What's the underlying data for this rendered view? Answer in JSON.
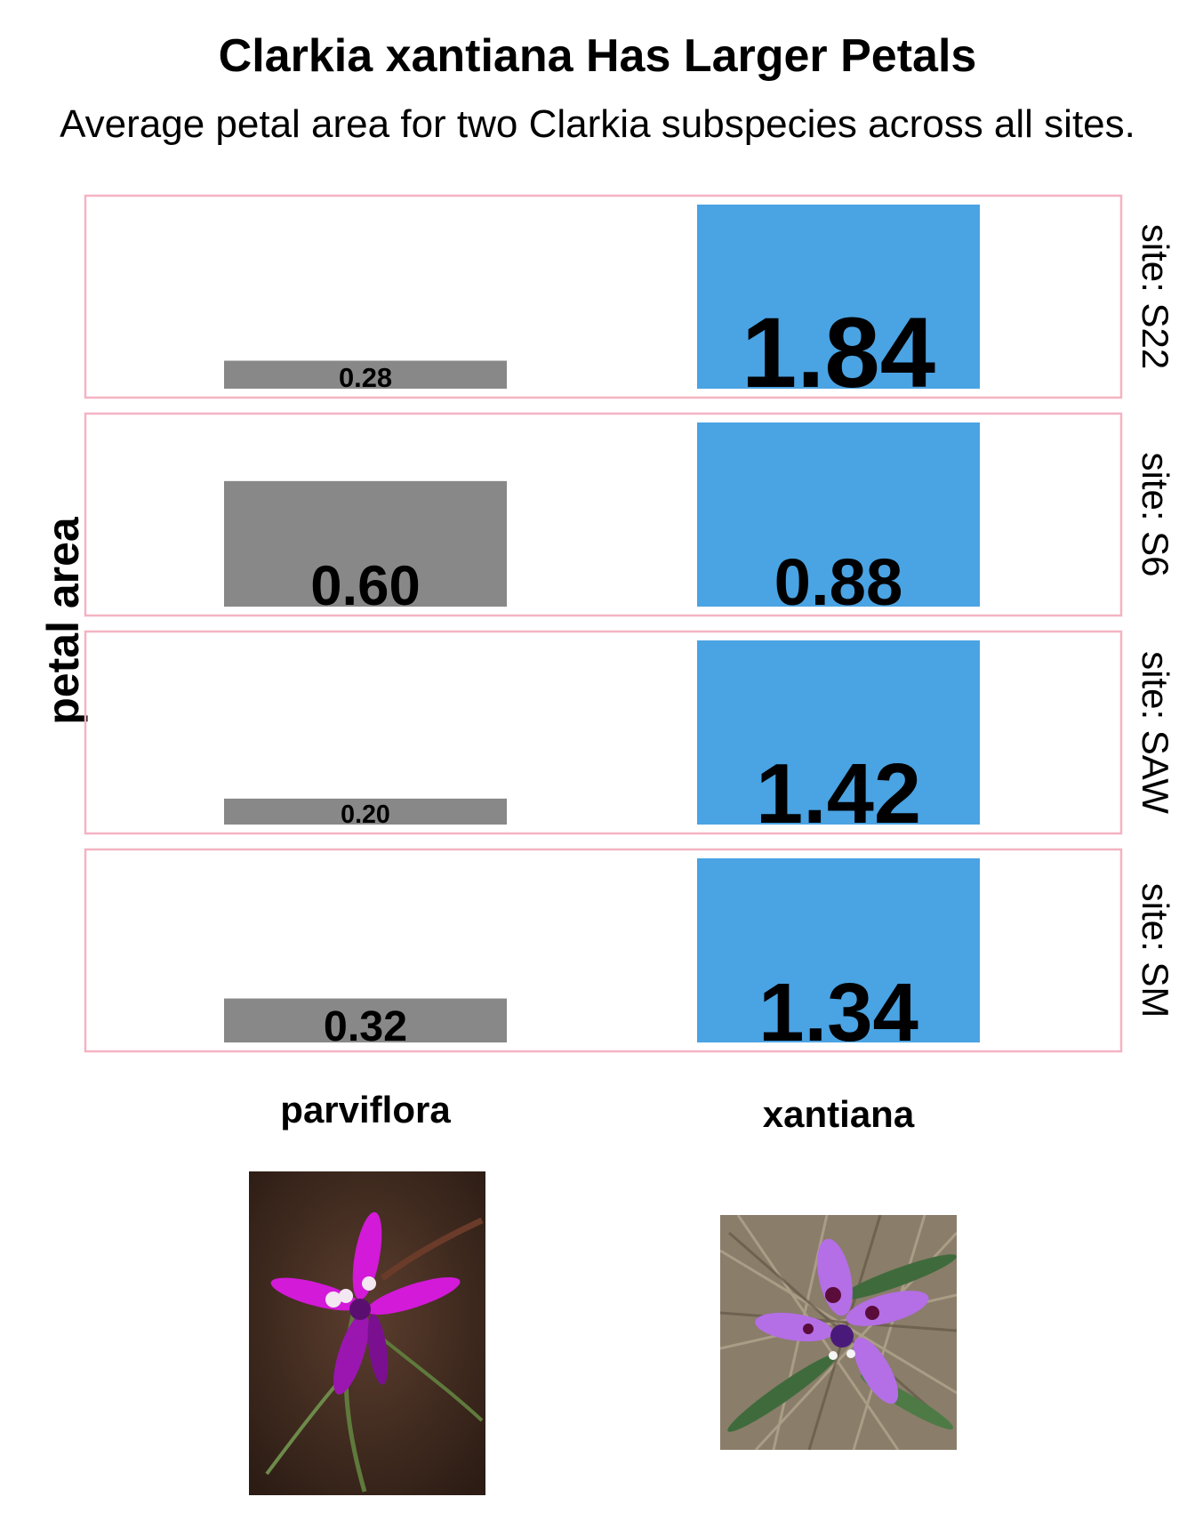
{
  "chart_data": {
    "type": "bar",
    "title": "Clarkia xantiana Has Larger Petals",
    "subtitle": "Average petal area for two Clarkia subspecies across all sites.",
    "ylabel": "petal area",
    "categories": [
      "parviflora",
      "xantiana"
    ],
    "facet_prefix": "site: ",
    "facet_scales": "free_y",
    "label_size_scaled_by_value": true,
    "grid": false,
    "legend": "none",
    "colors": {
      "parviflora": "#888888",
      "xantiana": "#4aa3e3",
      "panel_border": "#f4b3c2"
    },
    "facets": [
      {
        "site": "S22",
        "values": [
          0.28,
          1.84
        ],
        "labels": [
          "0.28",
          "1.84"
        ]
      },
      {
        "site": "S6",
        "values": [
          0.6,
          0.88
        ],
        "labels": [
          "0.60",
          "0.88"
        ]
      },
      {
        "site": "SAW",
        "values": [
          0.2,
          1.42
        ],
        "labels": [
          "0.20",
          "1.42"
        ]
      },
      {
        "site": "SM",
        "values": [
          0.32,
          1.34
        ],
        "labels": [
          "0.32",
          "1.34"
        ]
      }
    ]
  },
  "photos": [
    {
      "name": "parviflora-flower-photo",
      "subject": "parviflora",
      "petal_color": "#d21ad8",
      "background": "#4a3125"
    },
    {
      "name": "xantiana-flower-photo",
      "subject": "xantiana",
      "petal_color": "#b46ee6",
      "background": "#8a7d6a"
    }
  ]
}
